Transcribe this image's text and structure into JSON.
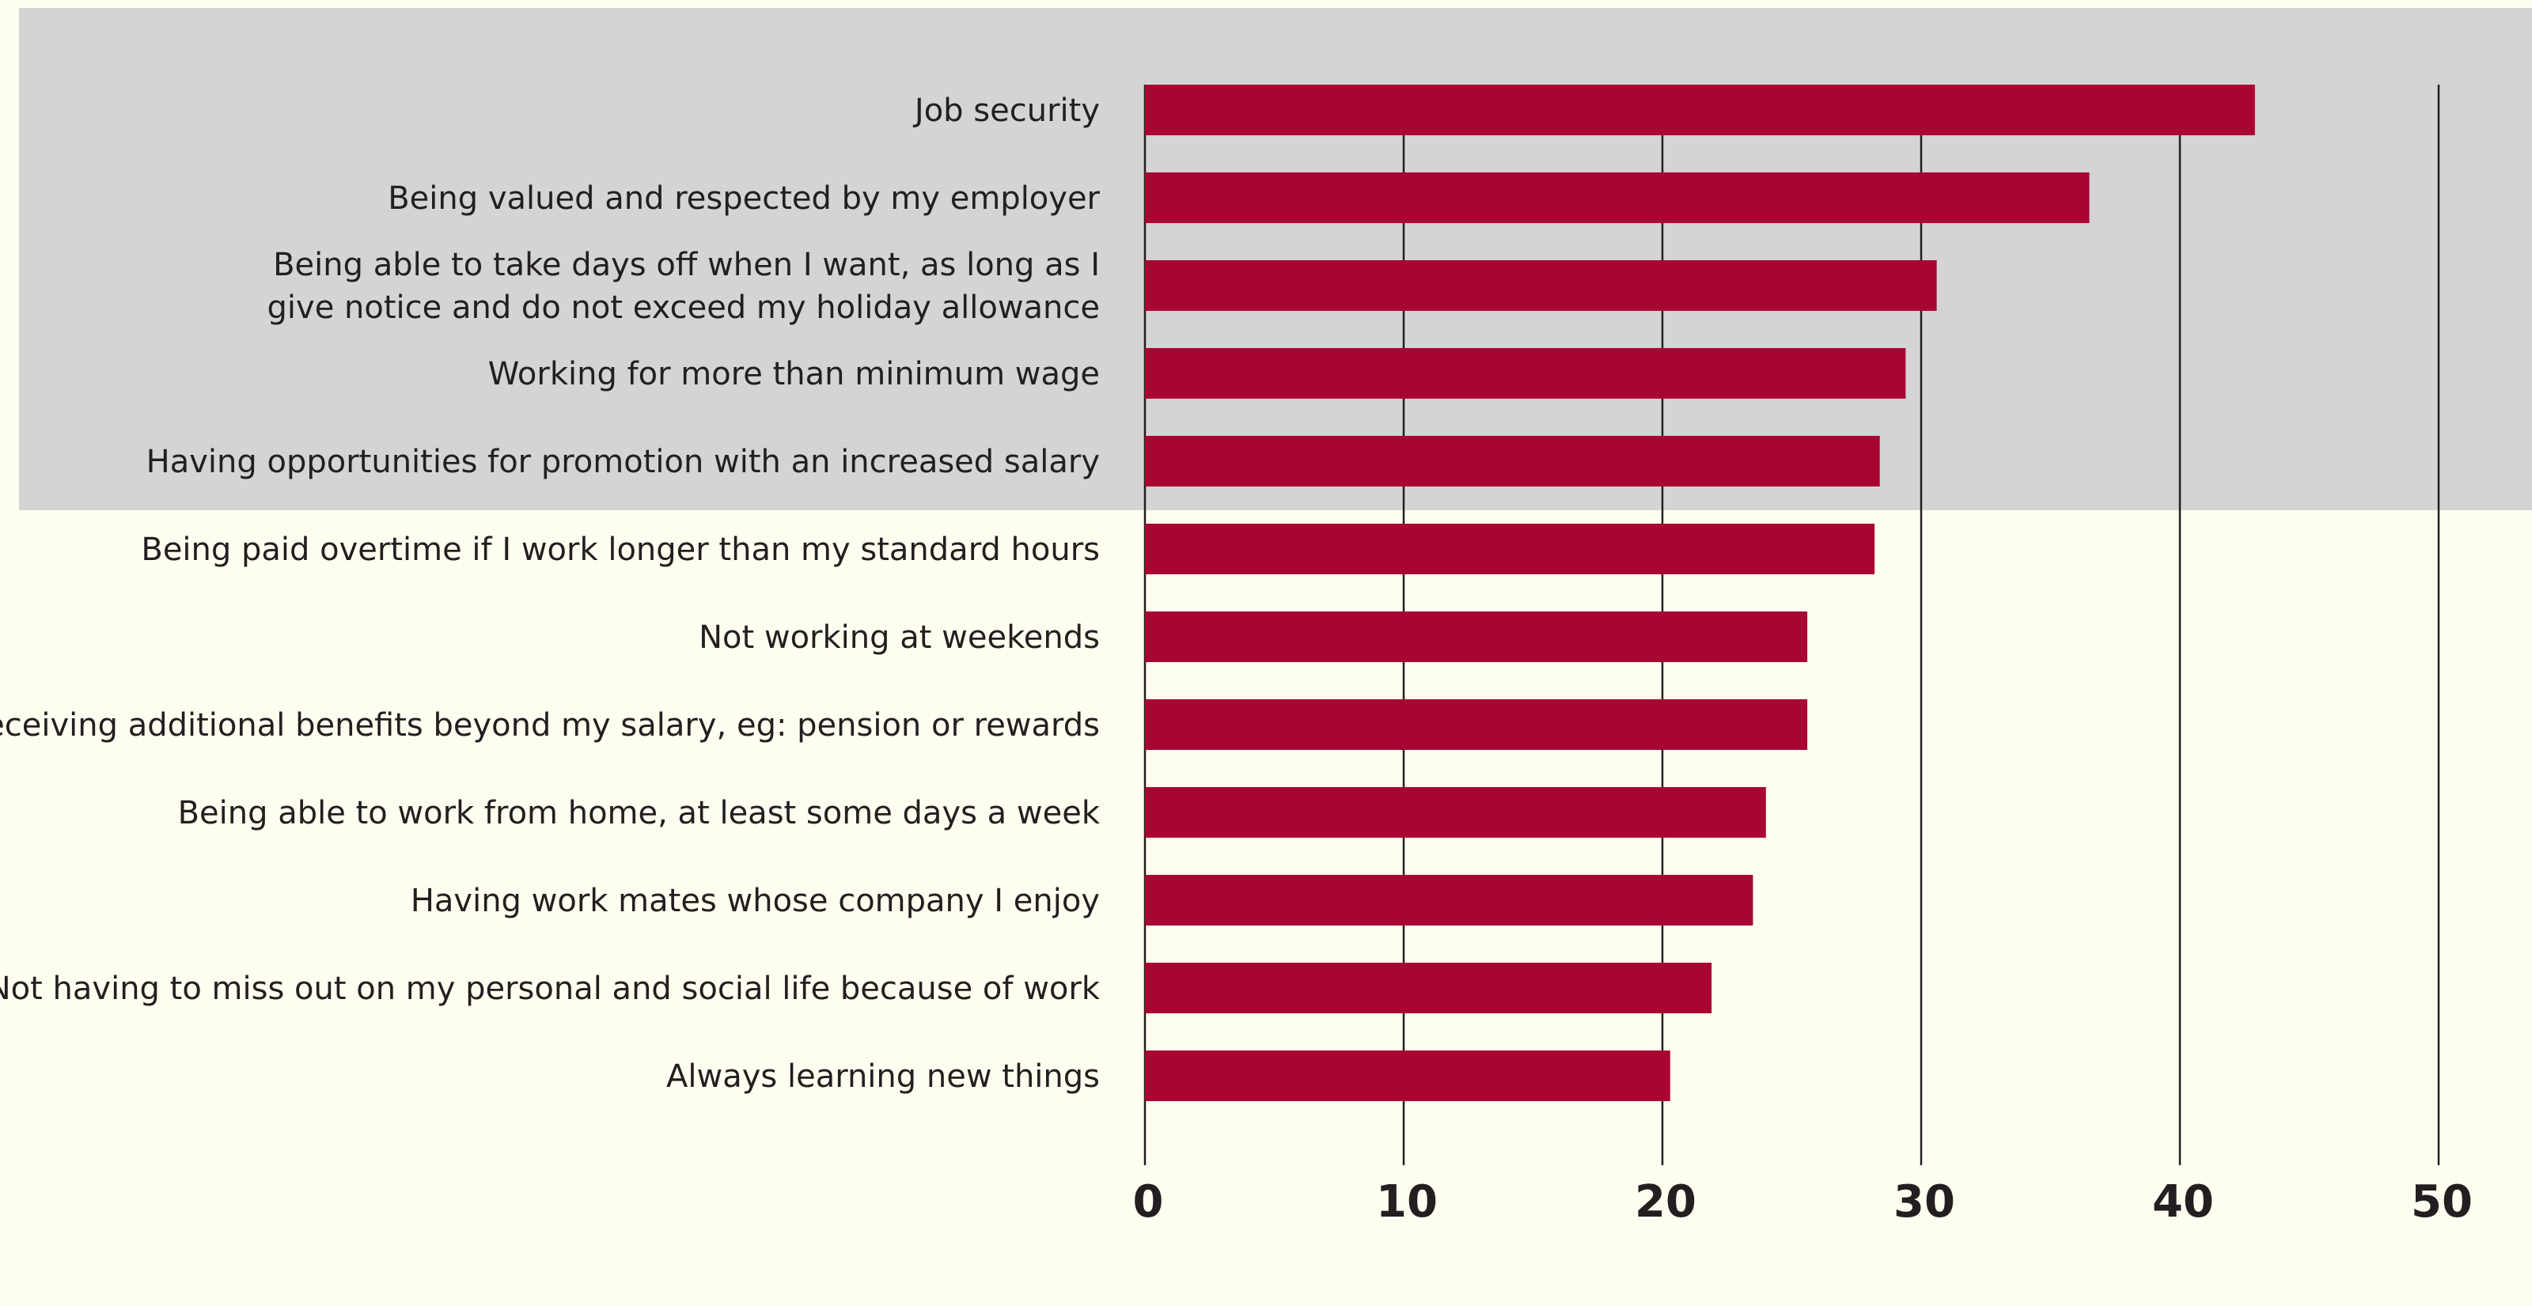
{
  "chart_data": {
    "type": "bar",
    "orientation": "horizontal",
    "categories": [
      "Job security",
      "Being valued and respected by my employer",
      "Being able to take days off when I want, as long as I give notice and do not exceed my holiday allowance",
      "Working for more than minimum wage",
      "Having opportunities for promotion with an increased salary",
      "Being paid overtime if I work longer than my standard hours",
      "Not working at weekends",
      "Receiving additional benefits beyond my salary, eg: pension or rewards",
      "Being able to work from home, at least some days a week",
      "Having work mates whose company I enjoy",
      "Not having to miss out on my personal and social life because of work",
      "Always learning new things"
    ],
    "category_lines": [
      [
        "Job security"
      ],
      [
        "Being valued and respected by my employer"
      ],
      [
        "Being able to take days off when I want, as long as I",
        "give notice and do not exceed my holiday allowance"
      ],
      [
        "Working for more than minimum wage"
      ],
      [
        "Having opportunities for promotion with an increased salary"
      ],
      [
        "Being paid overtime if I work longer than my standard hours"
      ],
      [
        "Not working at weekends"
      ],
      [
        "Receiving additional benefits beyond my salary, eg: pension or rewards"
      ],
      [
        "Being able to work from home, at least some days a week"
      ],
      [
        "Having work mates whose company I enjoy"
      ],
      [
        "Not having to miss out on my personal and social life because of work"
      ],
      [
        "Always learning new things"
      ]
    ],
    "values": [
      42.9,
      36.5,
      30.6,
      29.4,
      28.4,
      28.2,
      25.6,
      25.6,
      24.0,
      23.5,
      21.9,
      20.3
    ],
    "xlim": [
      0,
      50
    ],
    "xticks": [
      0,
      10,
      20,
      30,
      40,
      50
    ],
    "grid": true,
    "highlight_top_n": 5,
    "title": "",
    "xlabel": "",
    "ylabel": ""
  },
  "colors": {
    "bar": "#a80532",
    "background": "#fefef0",
    "highlight_band": "#d4d4d4",
    "gridline": "#231f20",
    "text": "#231f20"
  }
}
